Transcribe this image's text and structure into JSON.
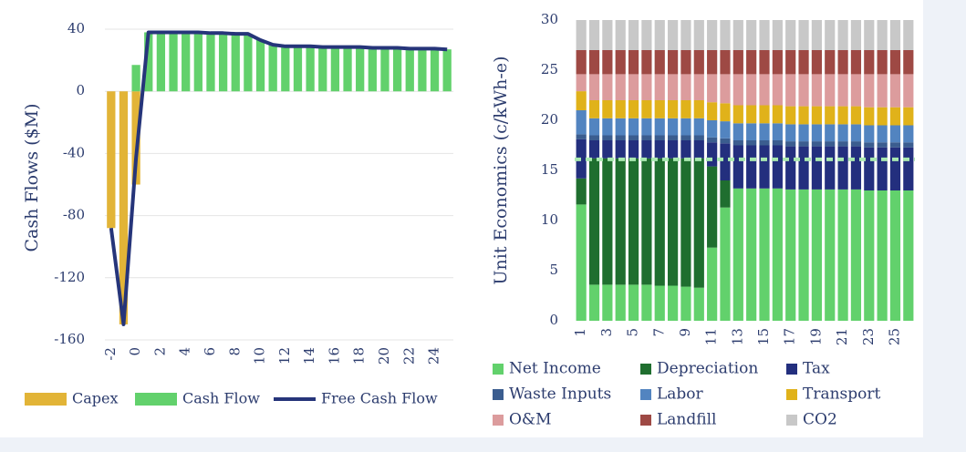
{
  "chart_data": [
    {
      "type": "combo",
      "ylabel": "Cash Flows ($M)",
      "x": [
        -2,
        -1,
        0,
        1,
        2,
        3,
        4,
        5,
        6,
        7,
        8,
        9,
        10,
        11,
        12,
        13,
        14,
        15,
        16,
        17,
        18,
        19,
        20,
        21,
        22,
        23,
        24,
        25
      ],
      "xlim": [
        -2.5,
        25.5
      ],
      "xticks": [
        -2,
        0,
        2,
        4,
        6,
        8,
        10,
        12,
        14,
        16,
        18,
        20,
        22,
        24
      ],
      "ylim": [
        -160,
        50
      ],
      "yticks": [
        -160,
        -120,
        -80,
        -40,
        0,
        40
      ],
      "grid": true,
      "legend": "bottom",
      "series": [
        {
          "name": "Capex",
          "type": "bar",
          "color": "#e2b437",
          "values": [
            -88,
            -150,
            -60,
            null,
            null,
            null,
            null,
            null,
            null,
            null,
            null,
            null,
            null,
            null,
            null,
            null,
            null,
            null,
            null,
            null,
            null,
            null,
            null,
            null,
            null,
            null,
            null,
            null
          ]
        },
        {
          "name": "Cash Flow",
          "type": "bar",
          "color": "#62d16c",
          "values": [
            null,
            null,
            17,
            38,
            38,
            38,
            38,
            38,
            37.5,
            37.5,
            37,
            37,
            33,
            30,
            29,
            29,
            29,
            28.5,
            28.5,
            28.5,
            28.5,
            28,
            28,
            28,
            27.5,
            27.5,
            27.5,
            27
          ]
        },
        {
          "name": "Free Cash Flow",
          "type": "line",
          "color": "#26357a",
          "values": [
            -88,
            -150,
            -43,
            38,
            38,
            38,
            38,
            38,
            37.5,
            37.5,
            37,
            37,
            33,
            30,
            29,
            29,
            29,
            28.5,
            28.5,
            28.5,
            28.5,
            28,
            28,
            28,
            27.5,
            27.5,
            27.5,
            27
          ]
        }
      ]
    },
    {
      "type": "stacked_bar",
      "ylabel": "Unit Economics (c/kWh-e)",
      "categories": [
        1,
        null,
        3,
        null,
        5,
        null,
        7,
        null,
        9,
        null,
        11,
        null,
        13,
        null,
        15,
        null,
        17,
        null,
        19,
        null,
        21,
        null,
        23,
        null,
        25,
        null
      ],
      "ylim": [
        0,
        30
      ],
      "yticks": [
        0,
        5,
        10,
        15,
        20,
        25,
        30
      ],
      "legend": "bottom",
      "reference_line": {
        "value": 16.1,
        "color": "#a9e8b0"
      },
      "series": [
        {
          "name": "Net Income",
          "color": "#62d16c",
          "values": [
            11.6,
            3.6,
            3.6,
            3.6,
            3.6,
            3.6,
            3.5,
            3.5,
            3.4,
            3.3,
            7.3,
            11.3,
            13.2,
            13.2,
            13.2,
            13.2,
            13.1,
            13.1,
            13.1,
            13.1,
            13.1,
            13.1,
            13.0,
            13.0,
            13.0,
            13.0
          ]
        },
        {
          "name": "Depreciation",
          "color": "#1f6e2f",
          "values": [
            2.6,
            12.6,
            12.6,
            12.6,
            12.6,
            12.6,
            12.7,
            12.7,
            12.8,
            12.9,
            8.1,
            2.7,
            0,
            0,
            0,
            0,
            0,
            0,
            0,
            0,
            0,
            0,
            0,
            0,
            0,
            0
          ]
        },
        {
          "name": "Tax",
          "color": "#232f7e",
          "values": [
            3.9,
            1.8,
            1.8,
            1.8,
            1.8,
            1.8,
            1.8,
            1.8,
            1.8,
            1.8,
            2.4,
            3.7,
            4.3,
            4.3,
            4.3,
            4.3,
            4.3,
            4.3,
            4.3,
            4.3,
            4.3,
            4.3,
            4.3,
            4.3,
            4.3,
            4.3
          ]
        },
        {
          "name": "Waste Inputs",
          "color": "#3b5d8f",
          "values": [
            0.5,
            0.5,
            0.5,
            0.5,
            0.5,
            0.5,
            0.5,
            0.5,
            0.5,
            0.5,
            0.5,
            0.5,
            0.5,
            0.5,
            0.5,
            0.5,
            0.5,
            0.5,
            0.5,
            0.5,
            0.5,
            0.5,
            0.5,
            0.5,
            0.5,
            0.5
          ]
        },
        {
          "name": "Labor",
          "color": "#5284c0",
          "values": [
            2.4,
            1.7,
            1.7,
            1.7,
            1.7,
            1.7,
            1.7,
            1.7,
            1.7,
            1.7,
            1.7,
            1.7,
            1.7,
            1.7,
            1.7,
            1.7,
            1.7,
            1.7,
            1.7,
            1.7,
            1.7,
            1.7,
            1.7,
            1.7,
            1.7,
            1.7
          ]
        },
        {
          "name": "Transport",
          "color": "#e0b21a",
          "values": [
            1.9,
            1.8,
            1.8,
            1.8,
            1.8,
            1.8,
            1.8,
            1.8,
            1.8,
            1.8,
            1.8,
            1.8,
            1.8,
            1.8,
            1.8,
            1.8,
            1.8,
            1.8,
            1.8,
            1.8,
            1.8,
            1.8,
            1.8,
            1.8,
            1.8,
            1.8
          ]
        },
        {
          "name": "O&M",
          "color": "#dc9c9d",
          "values": [
            1.7,
            2.6,
            2.6,
            2.6,
            2.6,
            2.6,
            2.6,
            2.6,
            2.6,
            2.6,
            2.8,
            2.9,
            3.1,
            3.1,
            3.1,
            3.1,
            3.2,
            3.2,
            3.2,
            3.2,
            3.2,
            3.2,
            3.3,
            3.3,
            3.3,
            3.3
          ]
        },
        {
          "name": "Landfill",
          "color": "#9e4944",
          "values": [
            2.4,
            2.4,
            2.4,
            2.4,
            2.4,
            2.4,
            2.4,
            2.4,
            2.4,
            2.4,
            2.4,
            2.4,
            2.4,
            2.4,
            2.4,
            2.4,
            2.4,
            2.4,
            2.4,
            2.4,
            2.4,
            2.4,
            2.4,
            2.4,
            2.4,
            2.4
          ]
        },
        {
          "name": "CO2",
          "color": "#c8c8c8",
          "values": [
            3,
            3,
            3,
            3,
            3,
            3,
            3,
            3,
            3,
            3,
            3,
            3,
            3,
            3,
            3,
            3,
            3,
            3,
            3,
            3,
            3,
            3,
            3,
            3,
            3,
            3
          ]
        }
      ]
    }
  ]
}
